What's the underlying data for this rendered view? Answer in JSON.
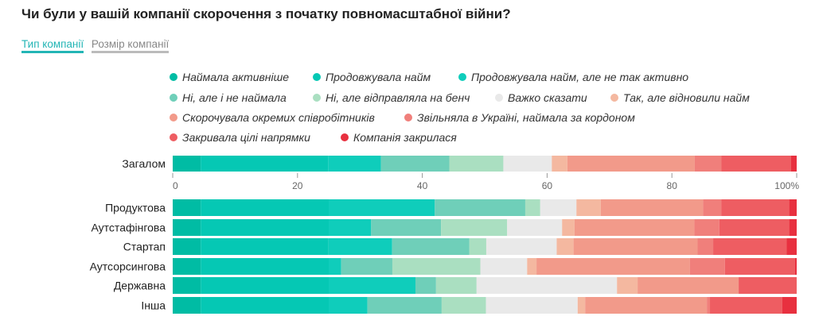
{
  "title": "Чи були у вашій компанії скорочення з початку повномасштабної війни?",
  "tabs": [
    {
      "label": "Тип компанії",
      "active": true
    },
    {
      "label": "Розмір компанії",
      "active": false
    }
  ],
  "chart_data": {
    "type": "bar",
    "orientation": "horizontal-stacked-100",
    "xlim": [
      0,
      100
    ],
    "ticks": [
      "0",
      "20",
      "40",
      "60",
      "80",
      "100%"
    ],
    "tick_values": [
      0,
      20,
      40,
      60,
      80,
      100
    ],
    "legend_placement": "top",
    "series": [
      {
        "name": "Наймала активніше",
        "color": "#00bca4"
      },
      {
        "name": "Продовжувала найм",
        "color": "#05c8b4"
      },
      {
        "name": "Продовжувала найм, але не так активно",
        "color": "#0fcdbb"
      },
      {
        "name": "Ні, але і не наймала",
        "color": "#6fcfb9"
      },
      {
        "name": "Ні, але відправляла на бенч",
        "color": "#aadfc1"
      },
      {
        "name": "Важко сказати",
        "color": "#e9e9e9"
      },
      {
        "name": "Так, але відновили найм",
        "color": "#f4b8a0"
      },
      {
        "name": "Скорочувала окремих співробітників",
        "color": "#f29a8a"
      },
      {
        "name": "Звільняла в Україні, наймала за кордоном",
        "color": "#f07f7b"
      },
      {
        "name": "Закривала цілі напрямки",
        "color": "#ee5d62"
      },
      {
        "name": "Компанія закрилася",
        "color": "#e8303f"
      }
    ],
    "categories": [
      "Загалом",
      "Продуктова",
      "Аутстафінгова",
      "Стартап",
      "Аутсорсингова",
      "Державна",
      "Інша"
    ],
    "values": [
      [
        4.5,
        20.5,
        8.5,
        11,
        8.7,
        7.8,
        2.5,
        20.5,
        4.3,
        11.2,
        0.9
      ],
      [
        4.5,
        20.5,
        17,
        14.5,
        2.4,
        5.8,
        3.9,
        16.4,
        2.9,
        10.9,
        1.2
      ],
      [
        4.5,
        20.5,
        6.8,
        11.2,
        10.6,
        8.8,
        2.0,
        19.2,
        4.0,
        11.2,
        1.2
      ],
      [
        4.5,
        20.5,
        10.2,
        12.4,
        2.7,
        11.3,
        2.7,
        19.9,
        2.5,
        11.8,
        1.6
      ],
      [
        4.5,
        20.5,
        2.0,
        8.2,
        14.1,
        7.5,
        1.5,
        24.6,
        5.6,
        11.2,
        0.3
      ],
      [
        4.5,
        20.5,
        13.9,
        3.3,
        6.5,
        22.5,
        3.3,
        16.2,
        0.0,
        9.3,
        0.0
      ],
      [
        4.5,
        20.5,
        6.2,
        11.9,
        7.1,
        14.7,
        1.2,
        19.5,
        0.5,
        11.6,
        2.3
      ]
    ]
  }
}
